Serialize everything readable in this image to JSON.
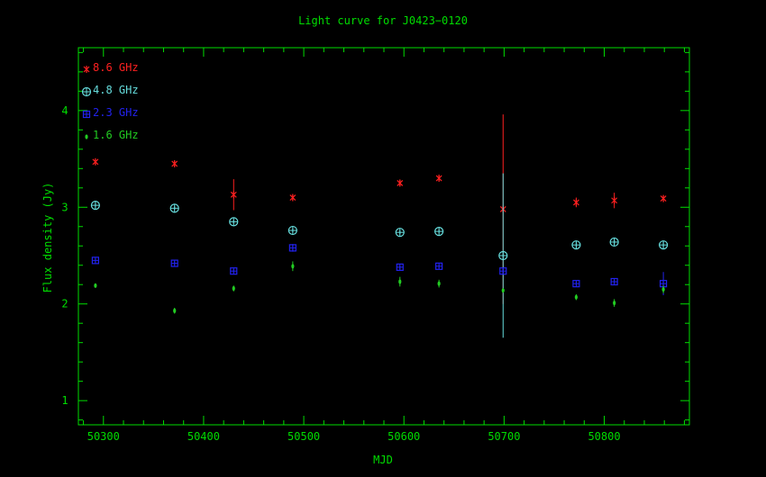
{
  "chart_data": {
    "type": "scatter",
    "title": "Light curve for J0423−0120",
    "xlabel": "MJD",
    "ylabel": "Flux density (Jy)",
    "xlim": [
      50275,
      50885
    ],
    "ylim": [
      0.75,
      4.65
    ],
    "xticks": [
      50300,
      50400,
      50500,
      50600,
      50700,
      50800
    ],
    "yticks": [
      1,
      2,
      3,
      4
    ],
    "grid": false,
    "legend_position": "top-left",
    "colors": {
      "background": "#000000",
      "axes": "#00dd00",
      "text": "#00dd00"
    },
    "series": [
      {
        "name": "8.6 GHz",
        "color": "#ff2020",
        "marker": "cross",
        "points": [
          {
            "x": 50292,
            "y": 3.47,
            "err": 0.03
          },
          {
            "x": 50371,
            "y": 3.45,
            "err": 0.03
          },
          {
            "x": 50430,
            "y": 3.13,
            "err": 0.16
          },
          {
            "x": 50489,
            "y": 3.1,
            "err": 0.03
          },
          {
            "x": 50596,
            "y": 3.25,
            "err": 0.03
          },
          {
            "x": 50635,
            "y": 3.3,
            "err": 0.03
          },
          {
            "x": 50699,
            "y": 2.98,
            "err": 0.98
          },
          {
            "x": 50772,
            "y": 3.05,
            "err": 0.05
          },
          {
            "x": 50810,
            "y": 3.07,
            "err": 0.08
          },
          {
            "x": 50859,
            "y": 3.09,
            "err": 0.03
          }
        ]
      },
      {
        "name": "4.8 GHz",
        "color": "#66dddd",
        "marker": "circle-plus",
        "points": [
          {
            "x": 50292,
            "y": 3.02,
            "err": 0.02
          },
          {
            "x": 50371,
            "y": 2.99,
            "err": 0.02
          },
          {
            "x": 50430,
            "y": 2.85,
            "err": 0.02
          },
          {
            "x": 50489,
            "y": 2.76,
            "err": 0.02
          },
          {
            "x": 50596,
            "y": 2.74,
            "err": 0.02
          },
          {
            "x": 50635,
            "y": 2.75,
            "err": 0.02
          },
          {
            "x": 50699,
            "y": 2.5,
            "err": 0.85
          },
          {
            "x": 50772,
            "y": 2.61,
            "err": 0.03
          },
          {
            "x": 50810,
            "y": 2.64,
            "err": 0.03
          },
          {
            "x": 50859,
            "y": 2.61,
            "err": 0.03
          }
        ]
      },
      {
        "name": "2.3 GHz",
        "color": "#2222ee",
        "marker": "square-plus",
        "points": [
          {
            "x": 50292,
            "y": 2.45,
            "err": 0.02
          },
          {
            "x": 50371,
            "y": 2.42,
            "err": 0.02
          },
          {
            "x": 50430,
            "y": 2.34,
            "err": 0.02
          },
          {
            "x": 50489,
            "y": 2.58,
            "err": 0.04
          },
          {
            "x": 50596,
            "y": 2.38,
            "err": 0.02
          },
          {
            "x": 50635,
            "y": 2.39,
            "err": 0.02
          },
          {
            "x": 50699,
            "y": 2.34,
            "err": 0.03
          },
          {
            "x": 50772,
            "y": 2.21,
            "err": 0.02
          },
          {
            "x": 50810,
            "y": 2.23,
            "err": 0.02
          },
          {
            "x": 50859,
            "y": 2.21,
            "err": 0.12
          }
        ]
      },
      {
        "name": "1.6 GHz",
        "color": "#22cc22",
        "marker": "dot",
        "points": [
          {
            "x": 50292,
            "y": 2.19,
            "err": 0.02
          },
          {
            "x": 50371,
            "y": 1.93,
            "err": 0.03
          },
          {
            "x": 50430,
            "y": 2.16,
            "err": 0.03
          },
          {
            "x": 50489,
            "y": 2.39,
            "err": 0.05
          },
          {
            "x": 50596,
            "y": 2.23,
            "err": 0.05
          },
          {
            "x": 50635,
            "y": 2.21,
            "err": 0.04
          },
          {
            "x": 50699,
            "y": 2.14,
            "err": 0.02
          },
          {
            "x": 50772,
            "y": 2.07,
            "err": 0.03
          },
          {
            "x": 50810,
            "y": 2.01,
            "err": 0.04
          },
          {
            "x": 50859,
            "y": 2.15,
            "err": 0.04
          }
        ]
      }
    ]
  }
}
